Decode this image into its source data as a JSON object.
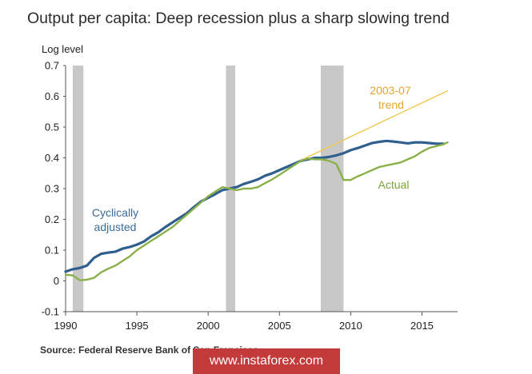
{
  "title": "Output per capita: Deep recession plus a sharp slowing trend",
  "ylabel": "Log level",
  "source": "Source: Federal Reserve Bank of San Francisco",
  "watermark": "www.instaforex.com",
  "colors": {
    "cyclically_adjusted": "#2f5f8f",
    "actual": "#8ab04a",
    "trend": "#f0c850",
    "recession": "#c8c8c8",
    "trend_label": "#e3a72f",
    "actual_label": "#7aa23a",
    "cyc_label": "#3a6b9a"
  },
  "chart_data": {
    "type": "line",
    "ylabel": "Log level",
    "ylim": [
      -0.1,
      0.7
    ],
    "yticks": [
      "0.7",
      "0.6",
      "0.5",
      "0.4",
      "0.3",
      "0.2",
      "0.1",
      "0",
      "-0.1"
    ],
    "yticks_values": [
      0.7,
      0.6,
      0.5,
      0.4,
      0.3,
      0.2,
      0.1,
      0,
      -0.1
    ],
    "xlim": [
      1990,
      2017.5
    ],
    "xticks": [
      "1990",
      "1995",
      "2000",
      "2005",
      "2010",
      "2015"
    ],
    "xticks_values": [
      1990,
      1995,
      2000,
      2005,
      2010,
      2015
    ],
    "recessions": [
      [
        1990.5,
        1991.25
      ],
      [
        2001.25,
        2001.9
      ],
      [
        2007.9,
        2009.5
      ]
    ],
    "annotations": [
      {
        "text": "2003-07",
        "series": "trend"
      },
      {
        "text": "trend",
        "series": "trend"
      },
      {
        "text": "Cyclically",
        "series": "cyclically_adjusted"
      },
      {
        "text": "adjusted",
        "series": "cyclically_adjusted"
      },
      {
        "text": "Actual",
        "series": "actual"
      }
    ],
    "series": [
      {
        "key": "trend",
        "x": [
          2006.0,
          2016.8
        ],
        "values": [
          0.381,
          0.618
        ]
      },
      {
        "key": "cyclically_adjusted",
        "x": [
          1990.0,
          1990.5,
          1991.0,
          1991.5,
          1992.0,
          1992.5,
          1993.0,
          1993.5,
          1994.0,
          1994.5,
          1995.0,
          1995.5,
          1996.0,
          1996.5,
          1997.0,
          1997.5,
          1998.0,
          1998.5,
          1999.0,
          1999.5,
          2000.0,
          2000.5,
          2001.0,
          2001.5,
          2002.0,
          2002.5,
          2003.0,
          2003.5,
          2004.0,
          2004.5,
          2005.0,
          2005.5,
          2006.0,
          2006.5,
          2007.0,
          2007.5,
          2008.0,
          2008.5,
          2009.0,
          2009.5,
          2010.0,
          2010.5,
          2011.0,
          2011.5,
          2012.0,
          2012.5,
          2013.0,
          2013.5,
          2014.0,
          2014.5,
          2015.0,
          2015.5,
          2016.0,
          2016.5
        ],
        "values": [
          0.03,
          0.038,
          0.042,
          0.05,
          0.075,
          0.088,
          0.092,
          0.095,
          0.105,
          0.11,
          0.118,
          0.128,
          0.145,
          0.158,
          0.175,
          0.19,
          0.205,
          0.22,
          0.24,
          0.258,
          0.27,
          0.282,
          0.295,
          0.3,
          0.305,
          0.315,
          0.322,
          0.33,
          0.342,
          0.35,
          0.36,
          0.37,
          0.38,
          0.39,
          0.395,
          0.4,
          0.4,
          0.403,
          0.408,
          0.415,
          0.425,
          0.432,
          0.44,
          0.448,
          0.452,
          0.455,
          0.453,
          0.45,
          0.447,
          0.45,
          0.45,
          0.448,
          0.446,
          0.446
        ]
      },
      {
        "key": "actual",
        "x": [
          1990.0,
          1990.5,
          1991.0,
          1991.5,
          1992.0,
          1992.5,
          1993.0,
          1993.5,
          1994.0,
          1994.5,
          1995.0,
          1995.5,
          1996.0,
          1996.5,
          1997.0,
          1997.5,
          1998.0,
          1998.5,
          1999.0,
          1999.5,
          2000.0,
          2000.5,
          2001.0,
          2001.5,
          2002.0,
          2002.5,
          2003.0,
          2003.5,
          2004.0,
          2004.5,
          2005.0,
          2005.5,
          2006.0,
          2006.5,
          2007.0,
          2007.5,
          2008.0,
          2008.5,
          2009.0,
          2009.5,
          2010.0,
          2010.5,
          2011.0,
          2011.5,
          2012.0,
          2012.5,
          2013.0,
          2013.5,
          2014.0,
          2014.5,
          2015.0,
          2015.5,
          2016.0,
          2016.5,
          2016.8
        ],
        "values": [
          0.02,
          0.018,
          0.002,
          0.004,
          0.01,
          0.028,
          0.04,
          0.05,
          0.065,
          0.08,
          0.1,
          0.115,
          0.13,
          0.145,
          0.16,
          0.175,
          0.195,
          0.215,
          0.235,
          0.255,
          0.275,
          0.29,
          0.305,
          0.3,
          0.295,
          0.3,
          0.3,
          0.305,
          0.318,
          0.33,
          0.345,
          0.36,
          0.375,
          0.39,
          0.398,
          0.395,
          0.395,
          0.39,
          0.38,
          0.328,
          0.328,
          0.34,
          0.35,
          0.36,
          0.37,
          0.375,
          0.38,
          0.385,
          0.395,
          0.405,
          0.42,
          0.432,
          0.438,
          0.444,
          0.45
        ]
      }
    ]
  }
}
